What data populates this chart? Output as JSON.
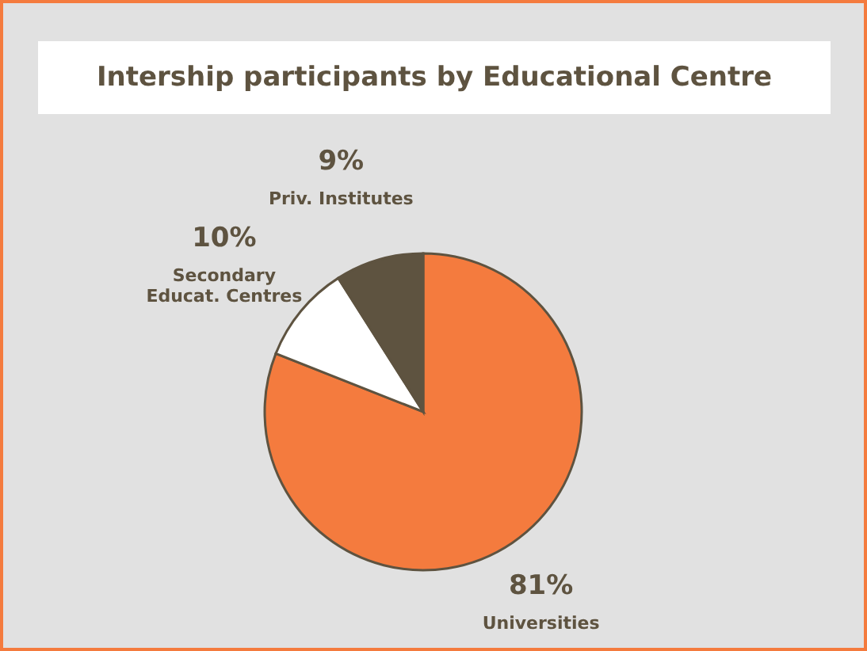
{
  "chart_data": {
    "type": "pie",
    "title": "Intership participants by Educational Centre",
    "categories": [
      "Universities",
      "Secondary Educat. Centres",
      "Priv. Institutes"
    ],
    "values": [
      81,
      10,
      9
    ],
    "value_labels": [
      "81%",
      "10%",
      "9%"
    ],
    "colors": [
      "#f47b3e",
      "#ffffff",
      "#5e5340"
    ]
  }
}
